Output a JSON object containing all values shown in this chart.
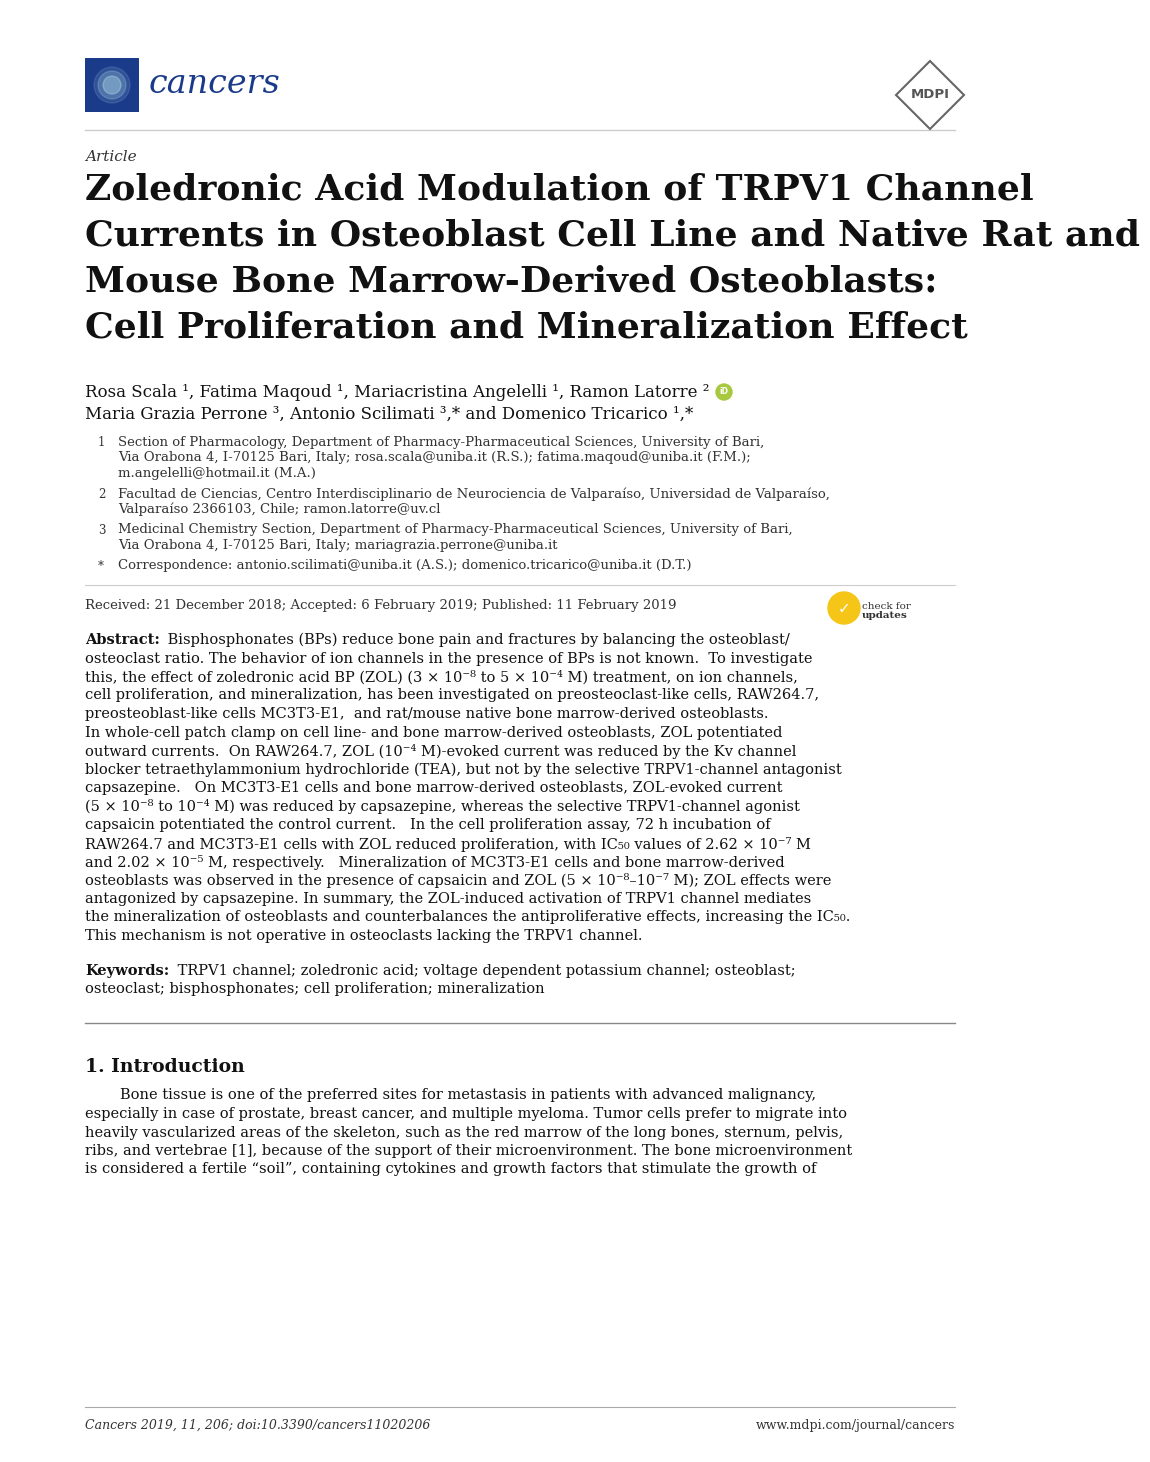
{
  "page_bg": "#ffffff",
  "cancers_logo_color": "#1a3a8a",
  "cancers_text": "cancers",
  "article_label": "Article",
  "title_line1": "Zoledronic Acid Modulation of TRPV1 Channel",
  "title_line2": "Currents in Osteoblast Cell Line and Native Rat and",
  "title_line3": "Mouse Bone Marrow-Derived Osteoblasts:",
  "title_line4": "Cell Proliferation and Mineralization Effect",
  "author_line1": "Rosa Scala ¹, Fatima Maqoud ¹, Mariacristina Angelelli ¹, Ramon Latorre ²",
  "author_line2": "Maria Grazia Perrone ³, Antonio Scilimati ³,* and Domenico Tricarico ¹,*",
  "aff1_num": "1",
  "aff1_line1": "Section of Pharmacology, Department of Pharmacy-Pharmaceutical Sciences, University of Bari,",
  "aff1_line2": "Via Orabona 4, I-70125 Bari, Italy; rosa.scala@uniba.it (R.S.); fatima.maqoud@uniba.it (F.M.);",
  "aff1_line3": "m.angelelli@hotmail.it (M.A.)",
  "aff2_num": "2",
  "aff2_line1": "Facultad de Ciencias, Centro Interdisciplinario de Neurociencia de Valparaíso, Universidad de Valparaíso,",
  "aff2_line2": "Valparaíso 2366103, Chile; ramon.latorre@uv.cl",
  "aff3_num": "3",
  "aff3_line1": "Medicinal Chemistry Section, Department of Pharmacy-Pharmaceutical Sciences, University of Bari,",
  "aff3_line2": "Via Orabona 4, I-70125 Bari, Italy; mariagrazia.perrone@uniba.it",
  "corr_sym": "*",
  "corr_line": "Correspondence: antonio.scilimati@uniba.it (A.S.); domenico.tricarico@uniba.it (D.T.)",
  "received": "Received: 21 December 2018; Accepted: 6 February 2019; Published: 11 February 2019",
  "abstract_label": "Abstract:",
  "abstract_lines": [
    " Bisphosphonates (BPs) reduce bone pain and fractures by balancing the osteoblast/",
    "osteoclast ratio. The behavior of ion channels in the presence of BPs is not known.  To investigate",
    "this, the effect of zoledronic acid BP (ZOL) (3 × 10⁻⁸ to 5 × 10⁻⁴ M) treatment, on ion channels,",
    "cell proliferation, and mineralization, has been investigated on preosteoclast-like cells, RAW264.7,",
    "preosteoblast-like cells MC3T3-E1,  and rat/mouse native bone marrow-derived osteoblasts.",
    "In whole-cell patch clamp on cell line- and bone marrow-derived osteoblasts, ZOL potentiated",
    "outward currents.  On RAW264.7, ZOL (10⁻⁴ M)-evoked current was reduced by the Kv channel",
    "blocker tetraethylammonium hydrochloride (TEA), but not by the selective TRPV1-channel antagonist",
    "capsazepine.   On MC3T3-E1 cells and bone marrow-derived osteoblasts, ZOL-evoked current",
    "(5 × 10⁻⁸ to 10⁻⁴ M) was reduced by capsazepine, whereas the selective TRPV1-channel agonist",
    "capsaicin potentiated the control current.   In the cell proliferation assay, 72 h incubation of",
    "RAW264.7 and MC3T3-E1 cells with ZOL reduced proliferation, with IC₅₀ values of 2.62 × 10⁻⁷ M",
    "and 2.02 × 10⁻⁵ M, respectively.   Mineralization of MC3T3-E1 cells and bone marrow-derived",
    "osteoblasts was observed in the presence of capsaicin and ZOL (5 × 10⁻⁸–10⁻⁷ M); ZOL effects were",
    "antagonized by capsazepine. In summary, the ZOL-induced activation of TRPV1 channel mediates",
    "the mineralization of osteoblasts and counterbalances the antiproliferative effects, increasing the IC₅₀.",
    "This mechanism is not operative in osteoclasts lacking the TRPV1 channel."
  ],
  "keywords_label": "Keywords:",
  "keywords_lines": [
    " TRPV1 channel; zoledronic acid; voltage dependent potassium channel; osteoblast;",
    "osteoclast; bisphosphonates; cell proliferation; mineralization"
  ],
  "section_num": "1.",
  "section_title": "Introduction",
  "intro_indent": "      Bone tissue is one of the preferred sites for metastasis in patients with advanced malignancy,",
  "intro_lines": [
    "especially in case of prostate, breast cancer, and multiple myeloma. Tumor cells prefer to migrate into",
    "heavily vascularized areas of the skeleton, such as the red marrow of the long bones, sternum, pelvis,",
    "ribs, and vertebrae [1], because of the support of their microenvironment. The bone microenvironment",
    "is considered a fertile “soil”, containing cytokines and growth factors that stimulate the growth of"
  ],
  "footer_journal": "Cancers 2019, 11, 206; doi:10.3390/cancers11020206",
  "footer_url": "www.mdpi.com/journal/cancers"
}
